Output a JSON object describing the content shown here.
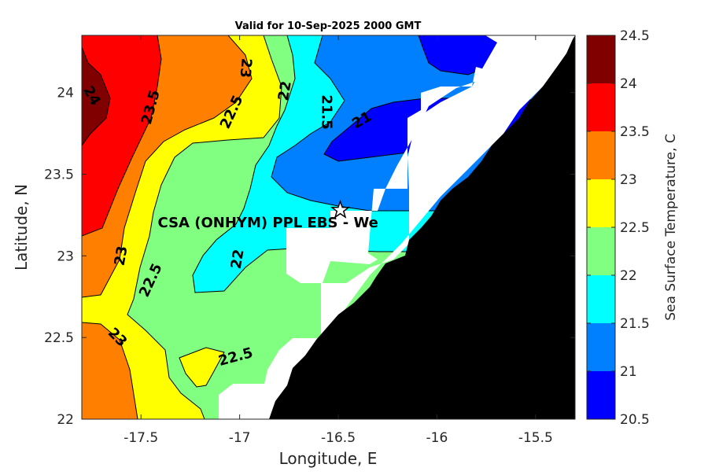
{
  "chart_data": {
    "type": "heatmap",
    "title": "Valid for 10-Sep-2025 2000 GMT",
    "xlabel": "Longitude, E",
    "ylabel": "Latitude, N",
    "xlim": [
      -17.8,
      -15.3
    ],
    "ylim": [
      22.0,
      24.35
    ],
    "x_ticks": [
      -17.5,
      -17,
      -16.5,
      -16,
      -15.5
    ],
    "x_tick_labels": [
      "-17.5",
      "-17",
      "-16.5",
      "-16",
      "-15.5"
    ],
    "y_ticks": [
      22,
      22.5,
      23,
      23.5,
      24
    ],
    "y_tick_labels": [
      "22",
      "22.5",
      "23",
      "23.5",
      "24"
    ],
    "colorbar": {
      "label": "Sea Surface Temperature, C",
      "range": [
        20.5,
        24.5
      ],
      "levels": [
        20.5,
        21,
        21.5,
        22,
        22.5,
        23,
        23.5,
        24,
        24.5
      ],
      "level_labels": [
        "20.5",
        "21",
        "21.5",
        "22",
        "22.5",
        "23",
        "23.5",
        "24",
        "24.5"
      ],
      "colors": [
        "#0000ff",
        "#0080ff",
        "#00ffff",
        "#80ff80",
        "#ffff00",
        "#ff8000",
        "#ff0000",
        "#800000"
      ]
    },
    "contour_labels": [
      {
        "text": "24",
        "lon": -17.75,
        "lat": 23.98,
        "rotate": 60
      },
      {
        "text": "23.5",
        "lon": -17.45,
        "lat": 23.91,
        "rotate": -75
      },
      {
        "text": "23",
        "lon": -16.97,
        "lat": 24.15,
        "rotate": 95
      },
      {
        "text": "22.5",
        "lon": -17.04,
        "lat": 23.88,
        "rotate": -65
      },
      {
        "text": "22",
        "lon": -16.77,
        "lat": 24.01,
        "rotate": -80
      },
      {
        "text": "21.5",
        "lon": -16.56,
        "lat": 23.88,
        "rotate": 90
      },
      {
        "text": "21",
        "lon": -16.38,
        "lat": 23.83,
        "rotate": -30
      },
      {
        "text": "23",
        "lon": -17.6,
        "lat": 23.0,
        "rotate": -80
      },
      {
        "text": "22.5",
        "lon": -17.45,
        "lat": 22.85,
        "rotate": -65
      },
      {
        "text": "22",
        "lon": -17.01,
        "lat": 22.98,
        "rotate": -80
      },
      {
        "text": "23",
        "lon": -17.62,
        "lat": 22.5,
        "rotate": 45
      },
      {
        "text": "22.5",
        "lon": -17.02,
        "lat": 22.38,
        "rotate": -15
      }
    ],
    "station": {
      "name": "CSA (ONHYM) PPL EBS  - We",
      "lon": -16.49,
      "lat": 23.28,
      "symbol": "star"
    },
    "land_color": "#000000",
    "nodata_color": "#ffffff",
    "grid": false,
    "legend": "colorbar-right"
  }
}
